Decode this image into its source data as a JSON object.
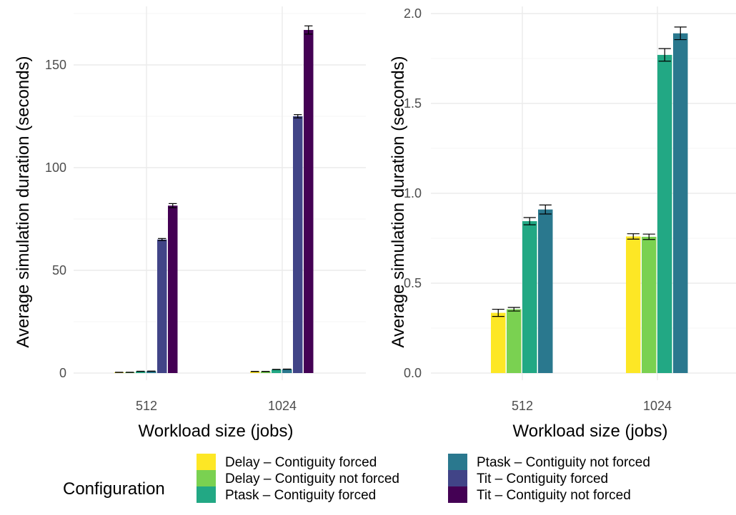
{
  "chart_data": [
    {
      "type": "bar",
      "xlabel": "Workload size (jobs)",
      "ylabel": "Average simulation duration (seconds)",
      "categories": [
        "512",
        "1024"
      ],
      "ylim": [
        0,
        175
      ],
      "yticks": [
        0,
        50,
        100,
        150
      ],
      "grid": true,
      "series": [
        {
          "name": "Delay – Contiguity forced",
          "values": [
            0.34,
            0.76
          ],
          "errors": [
            0.05,
            0.05
          ]
        },
        {
          "name": "Delay – Contiguity not forced",
          "values": [
            0.35,
            0.76
          ],
          "errors": [
            0.05,
            0.05
          ]
        },
        {
          "name": "Ptask – Contiguity forced",
          "values": [
            0.84,
            1.76
          ],
          "errors": [
            0.05,
            0.05
          ]
        },
        {
          "name": "Ptask – Contiguity not forced",
          "values": [
            0.91,
            1.89
          ],
          "errors": [
            0.05,
            0.05
          ]
        },
        {
          "name": "Tit – Contiguity forced",
          "values": [
            65.0,
            125.0
          ],
          "errors": [
            0.5,
            0.8
          ]
        },
        {
          "name": "Tit – Contiguity not forced",
          "values": [
            81.5,
            167.0
          ],
          "errors": [
            1.0,
            2.0
          ]
        }
      ]
    },
    {
      "type": "bar",
      "xlabel": "Workload size (jobs)",
      "ylabel": "Average simulation duration (seconds)",
      "categories": [
        "512",
        "1024"
      ],
      "ylim": [
        0,
        2.0
      ],
      "yticks": [
        0.0,
        0.5,
        1.0,
        1.5,
        2.0
      ],
      "ytick_labels": [
        "0.0",
        "0.5",
        "1.0",
        "1.5",
        "2.0"
      ],
      "grid": true,
      "series": [
        {
          "name": "Delay – Contiguity forced",
          "values": [
            0.335,
            0.76
          ],
          "errors": [
            0.02,
            0.015
          ]
        },
        {
          "name": "Delay – Contiguity not forced",
          "values": [
            0.355,
            0.758
          ],
          "errors": [
            0.01,
            0.015
          ]
        },
        {
          "name": "Ptask – Contiguity forced",
          "values": [
            0.845,
            1.77
          ],
          "errors": [
            0.02,
            0.035
          ]
        },
        {
          "name": "Ptask – Contiguity not forced",
          "values": [
            0.91,
            1.89
          ],
          "errors": [
            0.025,
            0.035
          ]
        }
      ]
    }
  ],
  "legend": {
    "title": "Configuration",
    "position": "bottom",
    "items": [
      {
        "label": "Delay – Contiguity forced",
        "color": "#FDE725"
      },
      {
        "label": "Delay – Contiguity not forced",
        "color": "#7AD151"
      },
      {
        "label": "Ptask – Contiguity forced",
        "color": "#22A884"
      },
      {
        "label": "Ptask – Contiguity not forced",
        "color": "#2A788E"
      },
      {
        "label": "Tit – Contiguity forced",
        "color": "#414487"
      },
      {
        "label": "Tit – Contiguity not forced",
        "color": "#440154"
      }
    ]
  }
}
